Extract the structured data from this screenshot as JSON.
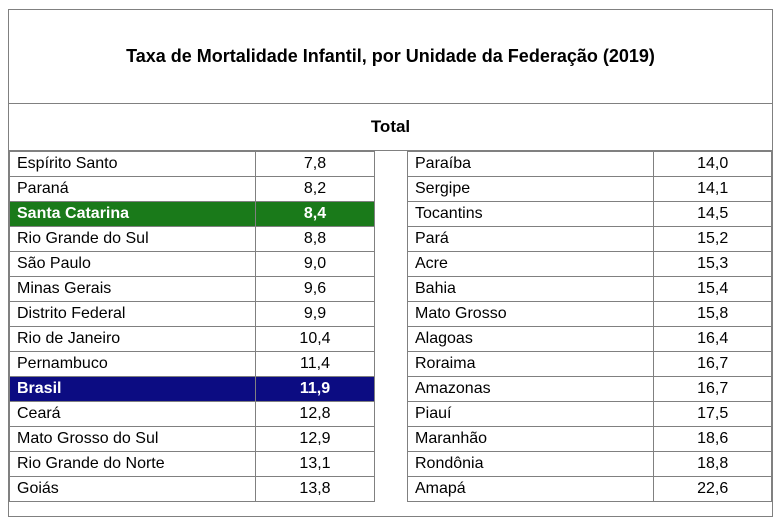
{
  "title": "Taxa de Mortalidade Infantil, por Unidade da Federação (2019)",
  "subtitle": "Total",
  "colors": {
    "santa_catarina_highlight": "#1a7a1a",
    "brasil_highlight": "#0c0c82"
  },
  "left_rows": [
    {
      "name": "Espírito Santo",
      "value": "7,8"
    },
    {
      "name": "Paraná",
      "value": "8,2"
    },
    {
      "name": "Santa Catarina",
      "value": "8,4"
    },
    {
      "name": "Rio Grande do Sul",
      "value": "8,8"
    },
    {
      "name": "São Paulo",
      "value": "9,0"
    },
    {
      "name": "Minas Gerais",
      "value": "9,6"
    },
    {
      "name": "Distrito Federal",
      "value": "9,9"
    },
    {
      "name": "Rio de Janeiro",
      "value": "10,4"
    },
    {
      "name": "Pernambuco",
      "value": "11,4"
    },
    {
      "name": "Brasil",
      "value": "11,9"
    },
    {
      "name": "Ceará",
      "value": "12,8"
    },
    {
      "name": "Mato Grosso do Sul",
      "value": "12,9"
    },
    {
      "name": "Rio Grande do Norte",
      "value": "13,1"
    },
    {
      "name": "Goiás",
      "value": "13,8"
    }
  ],
  "right_rows": [
    {
      "name": "Paraíba",
      "value": "14,0"
    },
    {
      "name": "Sergipe",
      "value": "14,1"
    },
    {
      "name": "Tocantins",
      "value": "14,5"
    },
    {
      "name": "Pará",
      "value": "15,2"
    },
    {
      "name": "Acre",
      "value": "15,3"
    },
    {
      "name": "Bahia",
      "value": "15,4"
    },
    {
      "name": "Mato Grosso",
      "value": "15,8"
    },
    {
      "name": "Alagoas",
      "value": "16,4"
    },
    {
      "name": "Roraima",
      "value": "16,7"
    },
    {
      "name": "Amazonas",
      "value": "16,7"
    },
    {
      "name": "Piauí",
      "value": "17,5"
    },
    {
      "name": "Maranhão",
      "value": "18,6"
    },
    {
      "name": "Rondônia",
      "value": "18,8"
    },
    {
      "name": "Amapá",
      "value": "22,6"
    }
  ]
}
